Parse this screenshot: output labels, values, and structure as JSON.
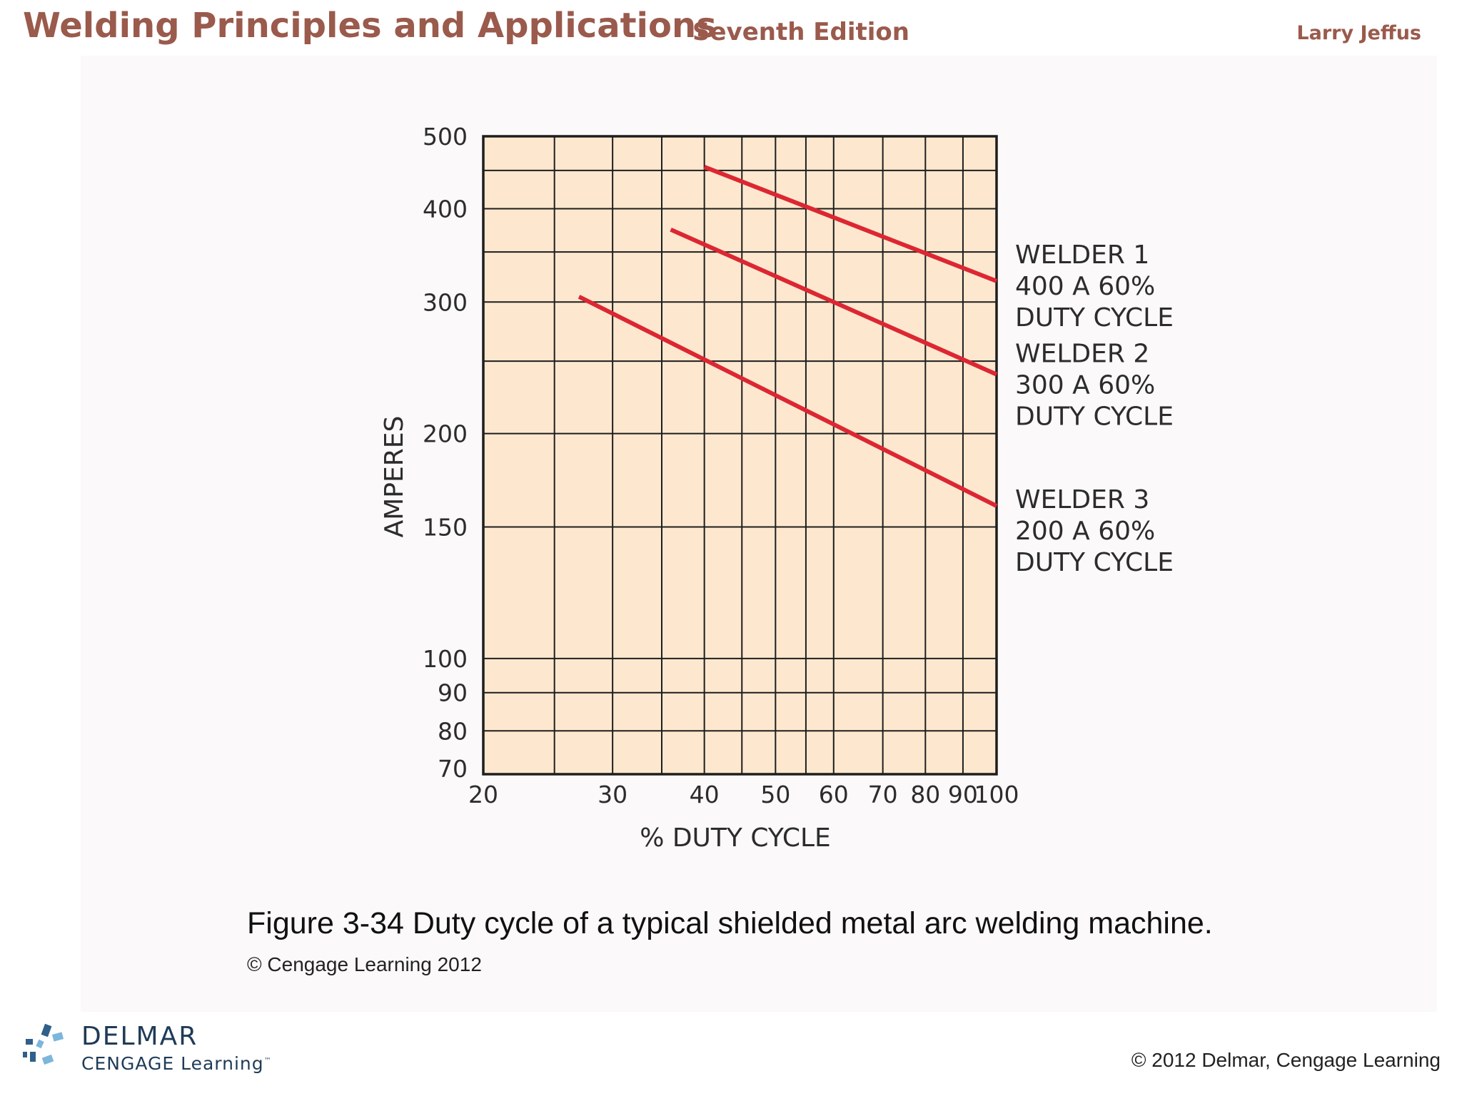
{
  "header": {
    "title": "Welding Principles and Applications",
    "edition": "Seventh Edition",
    "author": "Larry Jeffus"
  },
  "chart_data": {
    "type": "line",
    "title": "",
    "xlabel": "% DUTY CYCLE",
    "ylabel": "AMPERES",
    "x_scale": "log",
    "y_scale": "log",
    "xlim": [
      20,
      100
    ],
    "ylim": [
      70,
      500
    ],
    "grid": true,
    "x_ticks": [
      20,
      30,
      40,
      50,
      60,
      70,
      80,
      90,
      100
    ],
    "y_ticks": [
      70,
      80,
      90,
      100,
      150,
      200,
      300,
      400,
      500
    ],
    "x_gridlines": [
      25,
      30,
      35,
      40,
      45,
      50,
      55,
      60,
      70,
      80,
      90,
      100
    ],
    "y_gridlines": [
      80,
      90,
      100,
      150,
      200,
      250,
      300,
      350,
      400,
      450
    ],
    "plot_background": "#fde8cf",
    "line_color": "#dc2733",
    "series": [
      {
        "name": "WELDER 1",
        "label_lines": [
          "WELDER 1",
          "400 A 60%",
          "DUTY CYCLE"
        ],
        "x": [
          40,
          100
        ],
        "y": [
          455,
          320
        ]
      },
      {
        "name": "WELDER 2",
        "label_lines": [
          "WELDER 2",
          "300 A 60%",
          "DUTY CYCLE"
        ],
        "x": [
          36,
          100
        ],
        "y": [
          375,
          240
        ]
      },
      {
        "name": "WELDER 3",
        "label_lines": [
          "WELDER 3",
          "200 A 60%",
          "DUTY CYCLE"
        ],
        "x": [
          27,
          100
        ],
        "y": [
          305,
          160
        ]
      }
    ]
  },
  "caption": {
    "text": "Figure 3-34 Duty cycle of a typical shielded metal arc welding machine.",
    "credit": "© Cengage Learning 2012"
  },
  "footer": {
    "logo_name": "DELMAR",
    "logo_sub": "CENGAGE Learning",
    "logo_tm": "™",
    "logo_colors": [
      "#2f5f8a",
      "#7cb6dc"
    ],
    "copyright": "© 2012 Delmar, Cengage Learning"
  }
}
